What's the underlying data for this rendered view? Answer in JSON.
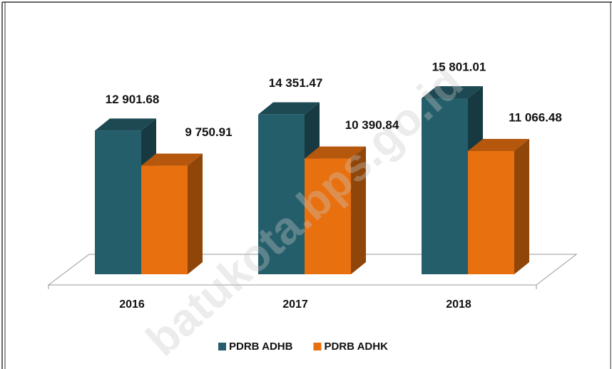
{
  "chart_data": {
    "type": "bar3d",
    "categories": [
      "2016",
      "2017",
      "2018"
    ],
    "series": [
      {
        "name": "PDRB ADHB",
        "color": "#255e6b",
        "values": [
          12901.68,
          14351.47,
          15801.01
        ],
        "value_labels": [
          "12 901.68",
          "14 351.47",
          "15 801.01"
        ]
      },
      {
        "name": "PDRB ADHK",
        "color": "#e8700f",
        "values": [
          9750.91,
          10390.84,
          11066.48
        ],
        "value_labels": [
          "9 750.91",
          "10 390.84",
          "11 066.48"
        ]
      }
    ],
    "legend": "bottom",
    "watermark": "batukota.bps.go.id"
  }
}
